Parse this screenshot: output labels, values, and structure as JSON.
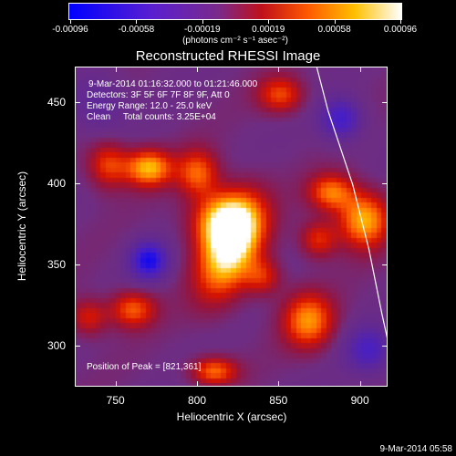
{
  "colorbar": {
    "ticks": [
      "-0.00096",
      "-0.00058",
      "-0.00019",
      "0.00019",
      "0.00058",
      "0.00096"
    ],
    "units": "(photons cm⁻² s⁻¹ asec⁻²)"
  },
  "annotations": {
    "time_range": "9-Mar-2014 01:16:32.000 to 01:21:46.000",
    "detectors": "Detectors: 3F 5F 6F 7F 8F 9F, Att 0",
    "energy": "Energy Range: 12.0 - 25.0 keV",
    "clean": "Clean     Total counts: 3.25E+04",
    "peak": "Position of Peak = [821,361]"
  },
  "footer": "9-Mar-2014 05:58",
  "colors": {
    "background": "#000000",
    "frame": "#ffffff",
    "limb": "#ffffff"
  },
  "chart_data": {
    "type": "heatmap",
    "title": "Reconstructed RHESSI Image",
    "xlabel": "Heliocentric X (arcsec)",
    "ylabel": "Heliocentric Y (arcsec)",
    "xlim": [
      725,
      917
    ],
    "ylim": [
      275,
      472
    ],
    "xticks": [
      750,
      800,
      850,
      900
    ],
    "yticks": [
      300,
      350,
      400,
      450
    ],
    "colorbar_range": [
      -0.00096,
      0.00096
    ],
    "peak": [
      821,
      361
    ],
    "sources": [
      {
        "x": 820,
        "y": 361,
        "value": 0.00096,
        "sx": 12,
        "sy": 22,
        "rot": 0.35
      },
      {
        "x": 816,
        "y": 378,
        "value": 0.0007,
        "sx": 14,
        "sy": 12,
        "rot": 0.0
      },
      {
        "x": 770,
        "y": 410,
        "value": 0.00075,
        "sx": 10,
        "sy": 8,
        "rot": 0.0
      },
      {
        "x": 745,
        "y": 412,
        "value": 0.0005,
        "sx": 9,
        "sy": 10,
        "rot": 0.0
      },
      {
        "x": 800,
        "y": 407,
        "value": 0.00055,
        "sx": 9,
        "sy": 10,
        "rot": 0.0
      },
      {
        "x": 851,
        "y": 455,
        "value": 0.0005,
        "sx": 10,
        "sy": 8,
        "rot": 0.0
      },
      {
        "x": 902,
        "y": 378,
        "value": 0.00075,
        "sx": 11,
        "sy": 12,
        "rot": 0.0
      },
      {
        "x": 882,
        "y": 395,
        "value": 0.0006,
        "sx": 10,
        "sy": 8,
        "rot": 0.0
      },
      {
        "x": 874,
        "y": 366,
        "value": 0.00045,
        "sx": 8,
        "sy": 8,
        "rot": 0.0
      },
      {
        "x": 868,
        "y": 316,
        "value": 0.00065,
        "sx": 11,
        "sy": 12,
        "rot": 0.0
      },
      {
        "x": 760,
        "y": 323,
        "value": 0.00055,
        "sx": 10,
        "sy": 8,
        "rot": 0.0
      },
      {
        "x": 733,
        "y": 318,
        "value": 0.0004,
        "sx": 8,
        "sy": 8,
        "rot": 0.0
      },
      {
        "x": 810,
        "y": 285,
        "value": 0.00058,
        "sx": 10,
        "sy": 6,
        "rot": 0.0
      },
      {
        "x": 840,
        "y": 343,
        "value": 0.0004,
        "sx": 8,
        "sy": 8,
        "rot": 0.0
      },
      {
        "x": 770,
        "y": 353,
        "value": -0.0008,
        "sx": 8,
        "sy": 8,
        "rot": 0.0
      },
      {
        "x": 888,
        "y": 440,
        "value": -0.0006,
        "sx": 9,
        "sy": 9,
        "rot": 0.0
      },
      {
        "x": 905,
        "y": 298,
        "value": -0.0005,
        "sx": 10,
        "sy": 10,
        "rot": 0.0
      },
      {
        "x": 738,
        "y": 450,
        "value": -0.0003,
        "sx": 12,
        "sy": 12,
        "rot": 0.0
      }
    ],
    "limb": [
      [
        873,
        472
      ],
      [
        880,
        445
      ],
      [
        895,
        400
      ],
      [
        905,
        360
      ],
      [
        913,
        320
      ],
      [
        917,
        302
      ]
    ]
  }
}
